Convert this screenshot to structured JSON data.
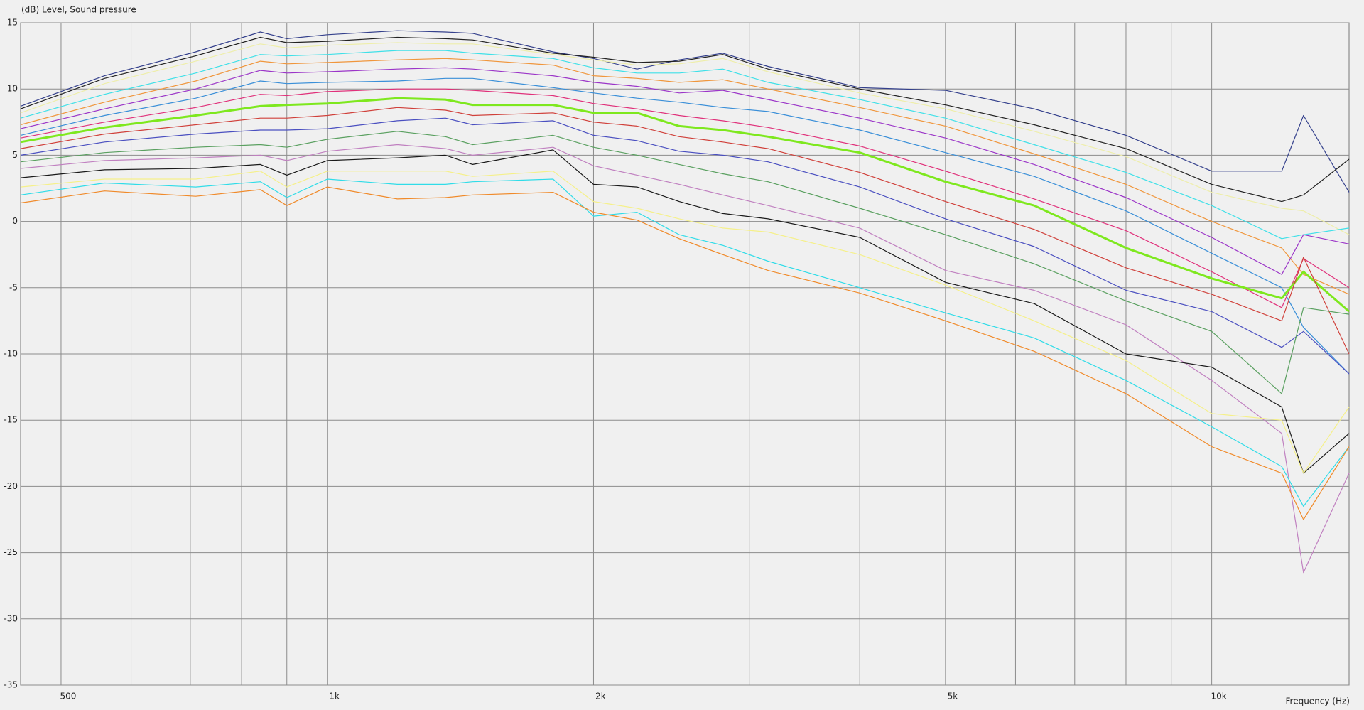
{
  "chart_data": {
    "type": "line",
    "title": "(dB)  Level, Sound pressure",
    "x_label": "Frequency  (Hz)",
    "log_x": true,
    "grid": true,
    "xlim": [
      450,
      14300
    ],
    "ylim": [
      -35,
      15
    ],
    "yticks": [
      15,
      10,
      5,
      0,
      -5,
      -10,
      -15,
      -20,
      -25,
      -30,
      -35
    ],
    "xticks": [
      500,
      {
        "value": 1000,
        "label": "1k"
      },
      {
        "value": 2000,
        "label": "2k"
      },
      {
        "value": 5000,
        "label": "5k"
      },
      {
        "value": 10000,
        "label": "10k"
      }
    ],
    "x_minor_ticks": [
      600,
      700,
      800,
      900,
      3000,
      4000,
      6000,
      7000,
      8000,
      9000
    ],
    "x": [
      450,
      560,
      710,
      840,
      900,
      1000,
      1200,
      1360,
      1460,
      1800,
      2000,
      2240,
      2500,
      2800,
      3150,
      4000,
      5000,
      6300,
      8000,
      10000,
      12000,
      12700,
      14300
    ],
    "series": [
      {
        "color": "#34408c",
        "values": [
          8.7,
          11,
          12.8,
          14.3,
          13.8,
          14.1,
          14.4,
          14.3,
          14.2,
          12.8,
          12.3,
          11.5,
          12.2,
          12.7,
          11.7,
          10.1,
          9.9,
          8.5,
          6.5,
          3.8,
          3.8,
          8,
          2.2
        ]
      },
      {
        "color": "#222222",
        "values": [
          8.5,
          10.8,
          12.5,
          13.9,
          13.5,
          13.6,
          13.9,
          13.8,
          13.7,
          12.7,
          12.4,
          12.0,
          12.1,
          12.6,
          11.5,
          10.0,
          8.8,
          7.3,
          5.5,
          2.8,
          1.5,
          2.0,
          4.7
        ]
      },
      {
        "color": "#eeeeaa",
        "values": [
          8.2,
          10.4,
          12.1,
          13.4,
          13.1,
          13.3,
          13.5,
          13.4,
          13.4,
          12.6,
          12.2,
          11.8,
          11.9,
          12.3,
          11.3,
          9.7,
          8.5,
          6.8,
          4.9,
          2.2,
          1.0,
          0.8,
          -1
        ]
      },
      {
        "color": "#3fe0e8",
        "values": [
          7.8,
          9.6,
          11.2,
          12.6,
          12.5,
          12.6,
          12.9,
          12.9,
          12.7,
          12.3,
          11.6,
          11.2,
          11.2,
          11.5,
          10.5,
          9.2,
          7.8,
          5.8,
          3.7,
          1.2,
          -1.3,
          -1.0,
          -0.5
        ]
      },
      {
        "color": "#f0963c",
        "values": [
          7.3,
          9.0,
          10.6,
          12.1,
          11.9,
          12.0,
          12.2,
          12.3,
          12.2,
          11.8,
          11.0,
          10.8,
          10.5,
          10.7,
          10.0,
          8.6,
          7.2,
          5.1,
          2.8,
          0.0,
          -2.0,
          -4.0,
          -5.5
        ]
      },
      {
        "color": "#9b35c8",
        "values": [
          7.0,
          8.5,
          10.0,
          11.4,
          11.2,
          11.3,
          11.5,
          11.6,
          11.5,
          11.0,
          10.5,
          10.2,
          9.7,
          9.9,
          9.2,
          7.8,
          6.3,
          4.3,
          1.8,
          -1.2,
          -4.0,
          -1.0,
          -1.7
        ]
      },
      {
        "color": "#3a8fd8",
        "values": [
          6.5,
          8.0,
          9.3,
          10.6,
          10.4,
          10.5,
          10.6,
          10.8,
          10.8,
          10.1,
          9.7,
          9.3,
          9.0,
          8.6,
          8.3,
          6.9,
          5.2,
          3.4,
          0.8,
          -2.4,
          -5.0,
          -8.0,
          -11.5
        ]
      },
      {
        "color": "#e0307a",
        "values": [
          6.3,
          7.5,
          8.6,
          9.6,
          9.5,
          9.8,
          10.0,
          10.0,
          9.9,
          9.5,
          8.9,
          8.5,
          8.0,
          7.6,
          7.1,
          5.7,
          3.8,
          1.7,
          -0.7,
          -3.8,
          -6.5,
          -2.8,
          -5.0
        ]
      },
      {
        "color": "#7ee81e",
        "width": 3,
        "values": [
          6.0,
          7.1,
          8.0,
          8.7,
          8.8,
          8.9,
          9.3,
          9.2,
          8.8,
          8.8,
          8.2,
          8.2,
          7.2,
          6.9,
          6.4,
          5.2,
          3.0,
          1.2,
          -2.0,
          -4.3,
          -5.8,
          -3.8,
          -6.8
        ]
      },
      {
        "color": "#d0403a",
        "values": [
          5.5,
          6.6,
          7.3,
          7.8,
          7.8,
          8.0,
          8.6,
          8.4,
          8.0,
          8.2,
          7.5,
          7.2,
          6.4,
          6.0,
          5.5,
          3.7,
          1.5,
          -0.6,
          -3.5,
          -5.5,
          -7.5,
          -2.7,
          -10
        ]
      },
      {
        "color": "#4a4fc0",
        "values": [
          5.0,
          6.0,
          6.6,
          6.9,
          6.9,
          7.0,
          7.6,
          7.8,
          7.3,
          7.6,
          6.5,
          6.1,
          5.3,
          5.0,
          4.5,
          2.6,
          0.2,
          -1.9,
          -5.2,
          -6.8,
          -9.5,
          -8.3,
          -11.5
        ]
      },
      {
        "color": "#5aa060",
        "values": [
          4.5,
          5.2,
          5.6,
          5.8,
          5.6,
          6.2,
          6.8,
          6.4,
          5.8,
          6.5,
          5.6,
          5.0,
          4.3,
          3.6,
          3.0,
          1.0,
          -1.0,
          -3.2,
          -6.0,
          -8.3,
          -13.0,
          -6.5,
          -7.0
        ]
      },
      {
        "color": "#c080c0",
        "values": [
          4.0,
          4.6,
          4.8,
          5.0,
          4.6,
          5.3,
          5.8,
          5.5,
          5.0,
          5.6,
          4.2,
          3.5,
          2.8,
          2.0,
          1.2,
          -0.5,
          -3.7,
          -5.2,
          -7.8,
          -12.0,
          -16.0,
          -26.5,
          -19.0
        ]
      },
      {
        "color": "#1a1a1a",
        "values": [
          3.3,
          3.9,
          4.0,
          4.3,
          3.5,
          4.6,
          4.8,
          5.0,
          4.3,
          5.4,
          2.8,
          2.6,
          1.5,
          0.6,
          0.2,
          -1.2,
          -4.6,
          -6.2,
          -10.0,
          -11.0,
          -14.0,
          -19.0,
          -16.0
        ]
      },
      {
        "color": "#f5f08a",
        "values": [
          2.6,
          3.2,
          3.2,
          3.8,
          2.6,
          3.8,
          3.8,
          3.8,
          3.4,
          3.8,
          1.5,
          1.0,
          0.2,
          -0.5,
          -0.8,
          -2.5,
          -4.8,
          -7.5,
          -10.5,
          -14.5,
          -15.0,
          -19.0,
          -14.0
        ]
      },
      {
        "color": "#30dce8",
        "values": [
          2.0,
          2.9,
          2.6,
          3.0,
          1.8,
          3.2,
          2.8,
          2.8,
          3.0,
          3.2,
          0.4,
          0.7,
          -1.0,
          -1.8,
          -3.0,
          -5.0,
          -6.9,
          -8.8,
          -12.0,
          -15.5,
          -18.5,
          -21.5,
          -17.0
        ]
      },
      {
        "color": "#f08a2a",
        "values": [
          1.4,
          2.3,
          1.9,
          2.4,
          1.2,
          2.6,
          1.7,
          1.8,
          2.0,
          2.2,
          0.7,
          0.1,
          -1.3,
          -2.5,
          -3.7,
          -5.4,
          -7.5,
          -9.8,
          -13.0,
          -17.0,
          -19.0,
          -22.5,
          -17.0
        ]
      }
    ]
  }
}
